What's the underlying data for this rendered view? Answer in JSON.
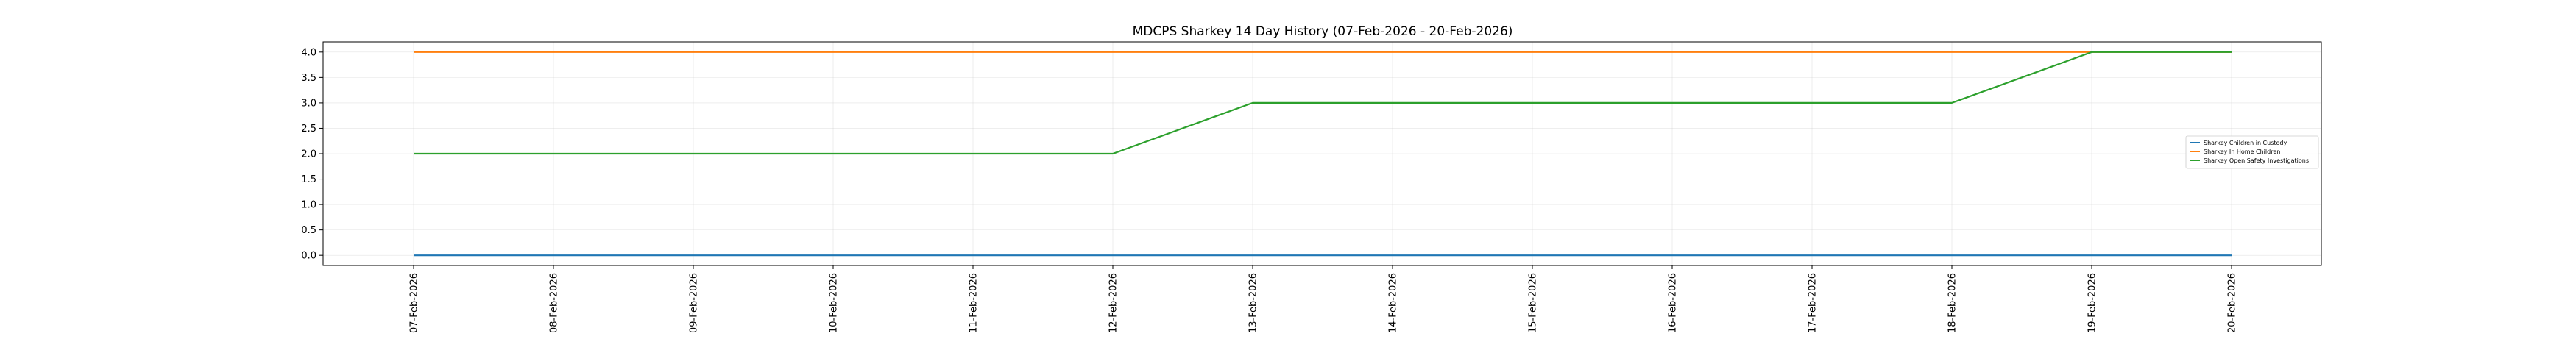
{
  "chart_data": {
    "type": "line",
    "title": "MDCPS Sharkey 14 Day History (07-Feb-2026 - 20-Feb-2026)",
    "xlabel": "",
    "ylabel": "",
    "categories": [
      "07-Feb-2026",
      "08-Feb-2026",
      "09-Feb-2026",
      "10-Feb-2026",
      "11-Feb-2026",
      "12-Feb-2026",
      "13-Feb-2026",
      "14-Feb-2026",
      "15-Feb-2026",
      "16-Feb-2026",
      "17-Feb-2026",
      "18-Feb-2026",
      "19-Feb-2026",
      "20-Feb-2026"
    ],
    "yticks": [
      "0.0",
      "0.5",
      "1.0",
      "1.5",
      "2.0",
      "2.5",
      "3.0",
      "3.5",
      "4.0"
    ],
    "ylim": [
      -0.2,
      4.2
    ],
    "grid": true,
    "legend": "center-right",
    "series": [
      {
        "name": "Sharkey Children in Custody",
        "color": "#1f77b4",
        "values": [
          0,
          0,
          0,
          0,
          0,
          0,
          0,
          0,
          0,
          0,
          0,
          0,
          0,
          0
        ]
      },
      {
        "name": "Sharkey In Home Children",
        "color": "#ff7f0e",
        "values": [
          4,
          4,
          4,
          4,
          4,
          4,
          4,
          4,
          4,
          4,
          4,
          4,
          4,
          4
        ]
      },
      {
        "name": "Sharkey Open Safety Investigations",
        "color": "#2ca02c",
        "values": [
          2,
          2,
          2,
          2,
          2,
          2,
          3,
          3,
          3,
          3,
          3,
          3,
          4,
          4
        ]
      }
    ]
  }
}
